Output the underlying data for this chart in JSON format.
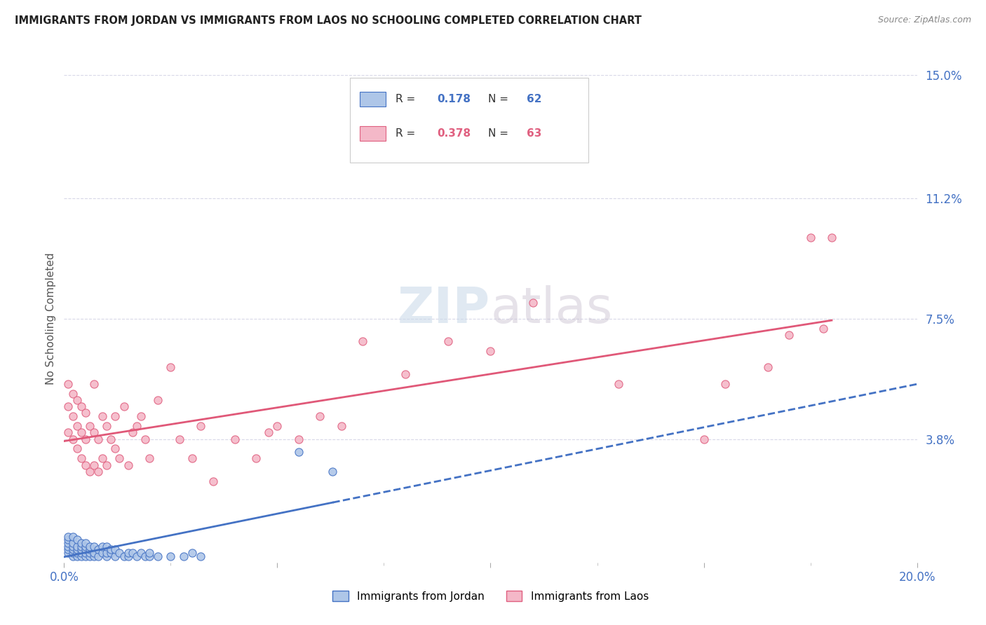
{
  "title": "IMMIGRANTS FROM JORDAN VS IMMIGRANTS FROM LAOS NO SCHOOLING COMPLETED CORRELATION CHART",
  "source": "Source: ZipAtlas.com",
  "ylabel": "No Schooling Completed",
  "xlim": [
    0.0,
    0.2
  ],
  "ylim": [
    0.0,
    0.15
  ],
  "right_ytick_labels": [
    "3.8%",
    "7.5%",
    "11.2%",
    "15.0%"
  ],
  "right_ytick_vals": [
    0.038,
    0.075,
    0.112,
    0.15
  ],
  "jordan_fill_color": "#aec6e8",
  "jordan_edge_color": "#4472c4",
  "laos_fill_color": "#f4b8c8",
  "laos_edge_color": "#e06080",
  "jordan_line_color": "#4472c4",
  "laos_line_color": "#e05878",
  "jordan_R": 0.178,
  "jordan_N": 62,
  "laos_R": 0.378,
  "laos_N": 63,
  "jordan_scatter_x": [
    0.001,
    0.001,
    0.001,
    0.001,
    0.001,
    0.001,
    0.002,
    0.002,
    0.002,
    0.002,
    0.002,
    0.002,
    0.003,
    0.003,
    0.003,
    0.003,
    0.003,
    0.004,
    0.004,
    0.004,
    0.004,
    0.004,
    0.005,
    0.005,
    0.005,
    0.005,
    0.005,
    0.006,
    0.006,
    0.006,
    0.006,
    0.007,
    0.007,
    0.007,
    0.008,
    0.008,
    0.009,
    0.009,
    0.01,
    0.01,
    0.01,
    0.011,
    0.011,
    0.012,
    0.012,
    0.013,
    0.014,
    0.015,
    0.015,
    0.016,
    0.017,
    0.018,
    0.019,
    0.02,
    0.02,
    0.022,
    0.025,
    0.028,
    0.03,
    0.032,
    0.055,
    0.063
  ],
  "jordan_scatter_y": [
    0.003,
    0.004,
    0.005,
    0.006,
    0.007,
    0.008,
    0.002,
    0.003,
    0.004,
    0.005,
    0.006,
    0.008,
    0.002,
    0.003,
    0.004,
    0.005,
    0.007,
    0.002,
    0.003,
    0.004,
    0.005,
    0.006,
    0.002,
    0.003,
    0.004,
    0.005,
    0.006,
    0.002,
    0.003,
    0.004,
    0.005,
    0.002,
    0.003,
    0.005,
    0.002,
    0.004,
    0.003,
    0.005,
    0.002,
    0.003,
    0.005,
    0.003,
    0.004,
    0.002,
    0.004,
    0.003,
    0.002,
    0.002,
    0.003,
    0.003,
    0.002,
    0.003,
    0.002,
    0.002,
    0.003,
    0.002,
    0.002,
    0.002,
    0.003,
    0.002,
    0.034,
    0.028
  ],
  "laos_scatter_x": [
    0.001,
    0.001,
    0.001,
    0.002,
    0.002,
    0.002,
    0.003,
    0.003,
    0.003,
    0.004,
    0.004,
    0.004,
    0.005,
    0.005,
    0.005,
    0.006,
    0.006,
    0.007,
    0.007,
    0.007,
    0.008,
    0.008,
    0.009,
    0.009,
    0.01,
    0.01,
    0.011,
    0.012,
    0.012,
    0.013,
    0.014,
    0.015,
    0.016,
    0.017,
    0.018,
    0.019,
    0.02,
    0.022,
    0.025,
    0.027,
    0.03,
    0.032,
    0.035,
    0.04,
    0.045,
    0.048,
    0.05,
    0.055,
    0.06,
    0.065,
    0.07,
    0.08,
    0.09,
    0.1,
    0.11,
    0.13,
    0.15,
    0.155,
    0.165,
    0.17,
    0.175,
    0.178,
    0.18
  ],
  "laos_scatter_y": [
    0.04,
    0.048,
    0.055,
    0.038,
    0.045,
    0.052,
    0.035,
    0.042,
    0.05,
    0.032,
    0.04,
    0.048,
    0.03,
    0.038,
    0.046,
    0.028,
    0.042,
    0.03,
    0.04,
    0.055,
    0.028,
    0.038,
    0.032,
    0.045,
    0.03,
    0.042,
    0.038,
    0.035,
    0.045,
    0.032,
    0.048,
    0.03,
    0.04,
    0.042,
    0.045,
    0.038,
    0.032,
    0.05,
    0.06,
    0.038,
    0.032,
    0.042,
    0.025,
    0.038,
    0.032,
    0.04,
    0.042,
    0.038,
    0.045,
    0.042,
    0.068,
    0.058,
    0.068,
    0.065,
    0.08,
    0.055,
    0.038,
    0.055,
    0.06,
    0.07,
    0.1,
    0.072,
    0.1
  ],
  "background_color": "#ffffff",
  "grid_color": "#d8d8e8"
}
